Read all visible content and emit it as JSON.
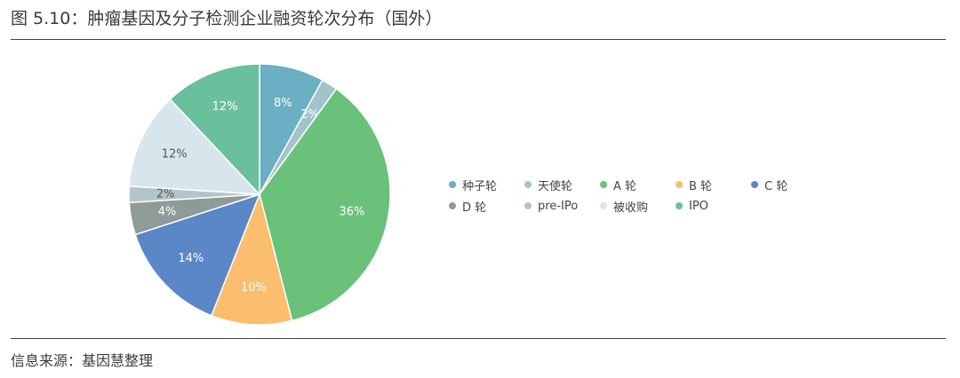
{
  "title": "图 5.10：肿瘤基因及分子检测企业融资轮次分布（国外）",
  "source": "信息来源：基因慧整理",
  "chart_data": {
    "type": "pie",
    "start_angle_deg": 0,
    "direction": "clockwise",
    "slices": [
      {
        "name": "种子轮",
        "value": 8,
        "label": "8%",
        "color": "#6aafc3"
      },
      {
        "name": "天使轮",
        "value": 2,
        "label": "2%",
        "color": "#a2c3c9"
      },
      {
        "name": "A 轮",
        "value": 36,
        "label": "36%",
        "color": "#6ac17a"
      },
      {
        "name": "B 轮",
        "value": 10,
        "label": "10%",
        "color": "#fbbd6e"
      },
      {
        "name": "C 轮",
        "value": 14,
        "label": "14%",
        "color": "#5b86c7"
      },
      {
        "name": "D 轮",
        "value": 4,
        "label": "4%",
        "color": "#8f9b98"
      },
      {
        "name": "pre-IPo",
        "value": 2,
        "label": "2%",
        "color": "#b3c5c9"
      },
      {
        "name": "被收购",
        "value": 12,
        "label": "12%",
        "color": "#d6e6ec"
      },
      {
        "name": "IPO",
        "value": 12,
        "label": "12%",
        "color": "#6abf9c"
      }
    ],
    "label_colors": {
      "default": "#ffffff",
      "light_slices": "#555555"
    },
    "legend": {
      "placement": "right",
      "columns": 5
    }
  }
}
